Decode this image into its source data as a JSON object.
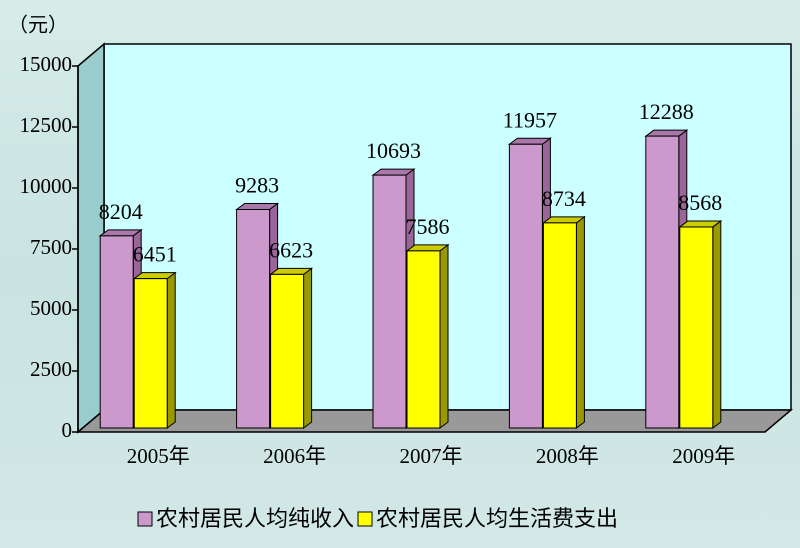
{
  "chart_data": {
    "type": "bar3d",
    "y_label": "（元）",
    "categories": [
      "2005年",
      "2006年",
      "2007年",
      "2008年",
      "2009年"
    ],
    "series": [
      {
        "name": "农村居民人均纯收入",
        "color": "#cc99cc",
        "values": [
          8204,
          9283,
          10693,
          11957,
          12288
        ]
      },
      {
        "name": "农村居民人均生活费支出",
        "color": "#ffff00",
        "values": [
          6451,
          6623,
          7586,
          8734,
          8568
        ]
      }
    ],
    "ylim": [
      0,
      15000
    ],
    "yticks": [
      0,
      2500,
      5000,
      7500,
      10000,
      12500,
      15000
    ]
  }
}
